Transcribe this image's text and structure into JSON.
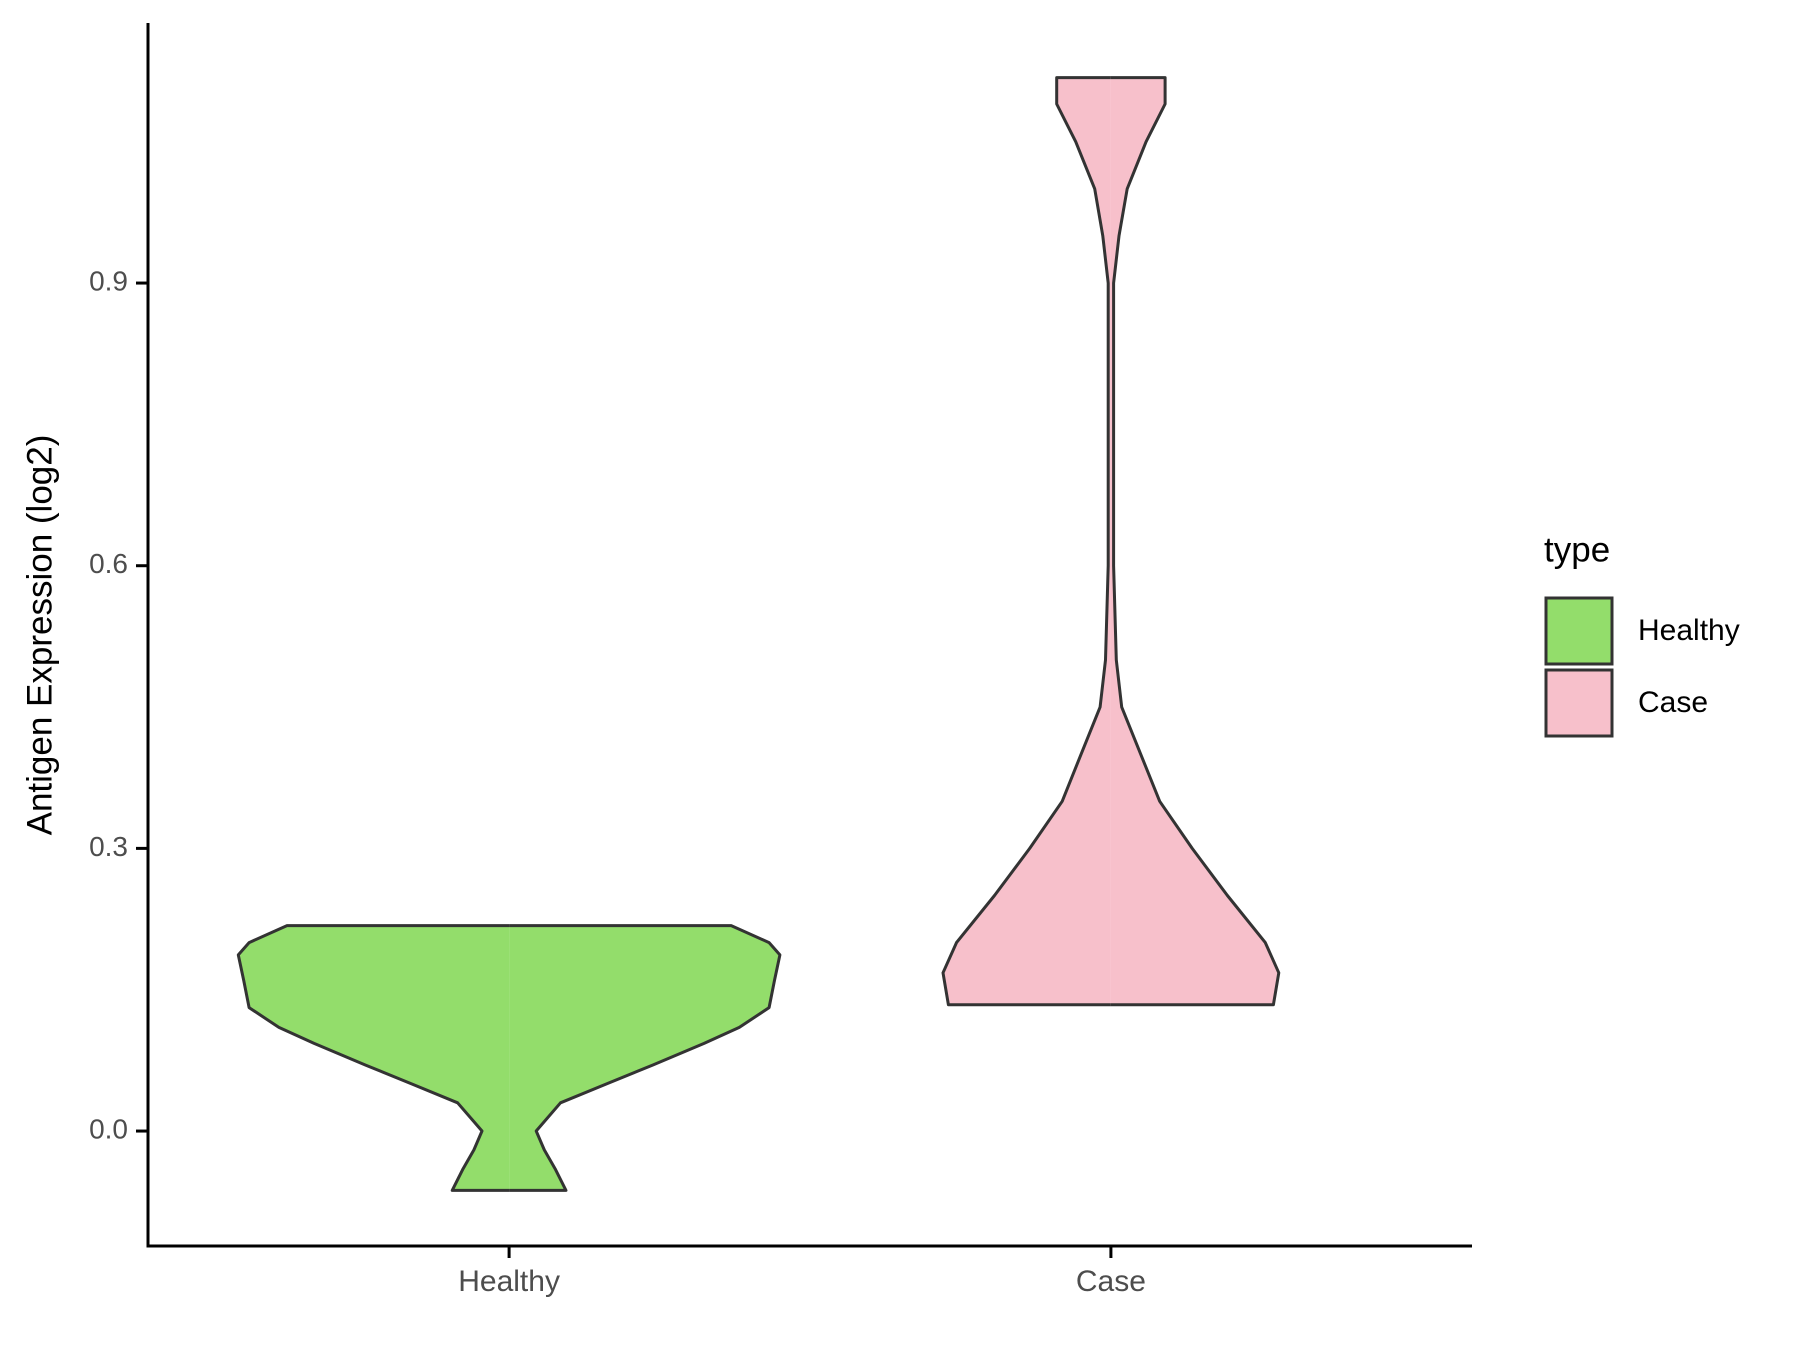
{
  "chart_data": {
    "type": "violin",
    "y_label": "Antigen Expression (log2)",
    "categories": [
      "Healthy",
      "Case"
    ],
    "ylim": [
      -0.122,
      1.176
    ],
    "yticks": [
      {
        "value": 0,
        "label": "0.0"
      },
      0.3,
      0.6,
      0.9
    ],
    "legend_title": "type",
    "legend_position": "right",
    "series": [
      {
        "name": "Healthy",
        "color": "#93dd6b",
        "y": [
          -0.063,
          -0.04,
          -0.02,
          0.0,
          0.03,
          0.05,
          0.07,
          0.093,
          0.11,
          0.131,
          0.16,
          0.187,
          0.2,
          0.218
        ],
        "density": [
          0.21,
          0.17,
          0.13,
          0.1,
          0.19,
          0.36,
          0.53,
          0.72,
          0.85,
          0.96,
          0.98,
          1,
          0.96,
          0.82
        ]
      },
      {
        "name": "Case",
        "color": "#f7c0cb",
        "y": [
          0.134,
          0.168,
          0.2,
          0.25,
          0.3,
          0.35,
          0.4,
          0.45,
          0.5,
          0.6,
          0.8,
          0.9,
          0.95,
          1.0,
          1.05,
          1.09,
          1.118
        ],
        "density": [
          0.6,
          0.62,
          0.57,
          0.43,
          0.3,
          0.18,
          0.11,
          0.04,
          0.02,
          0.01,
          0.01,
          0.01,
          0.03,
          0.06,
          0.13,
          0.2,
          0.2
        ]
      }
    ]
  }
}
